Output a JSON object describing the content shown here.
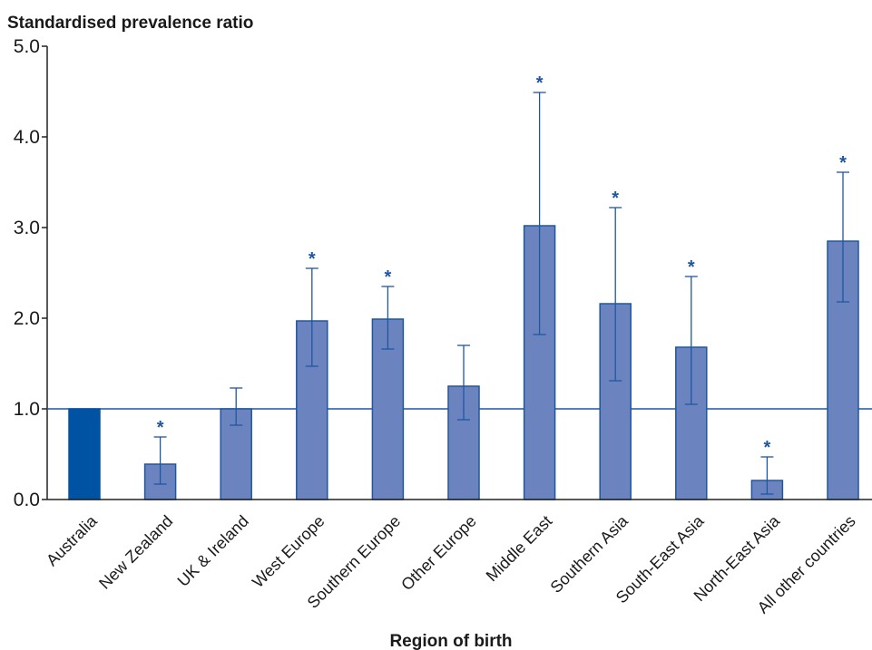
{
  "chart_data": {
    "type": "bar",
    "title": "",
    "ylabel": "Standardised prevalence ratio",
    "xlabel": "Region of birth",
    "ylim": [
      0,
      5
    ],
    "yticks": [
      "0.0",
      "1.0",
      "2.0",
      "3.0",
      "4.0",
      "5.0"
    ],
    "reference_line": 1.0,
    "categories": [
      "Australia",
      "New Zealand",
      "UK & Ireland",
      "West Europe",
      "Southern Europe",
      "Other Europe",
      "Middle East",
      "Southern Asia",
      "South-East Asia",
      "North-East Asia",
      "All other countries"
    ],
    "values": [
      1.0,
      0.39,
      1.0,
      1.97,
      1.99,
      1.25,
      3.02,
      2.16,
      1.68,
      0.21,
      2.85
    ],
    "ci_lower": [
      null,
      0.17,
      0.82,
      1.47,
      1.66,
      0.88,
      1.82,
      1.31,
      1.05,
      0.06,
      2.18
    ],
    "ci_upper": [
      null,
      0.69,
      1.23,
      2.55,
      2.35,
      1.7,
      4.49,
      3.22,
      2.46,
      0.47,
      3.61
    ],
    "significance_marker": "*",
    "significant": [
      false,
      true,
      false,
      true,
      true,
      false,
      true,
      true,
      true,
      true,
      true
    ],
    "grid": false,
    "colors": {
      "reference_bar": "#0052a3",
      "bar_fill": "#6b84c0",
      "bar_edge": "#1f56a0",
      "error_bar": "#1f56a0",
      "reference_line": "#1f56a0",
      "star": "#1f56a0",
      "axis": "#222222"
    }
  }
}
